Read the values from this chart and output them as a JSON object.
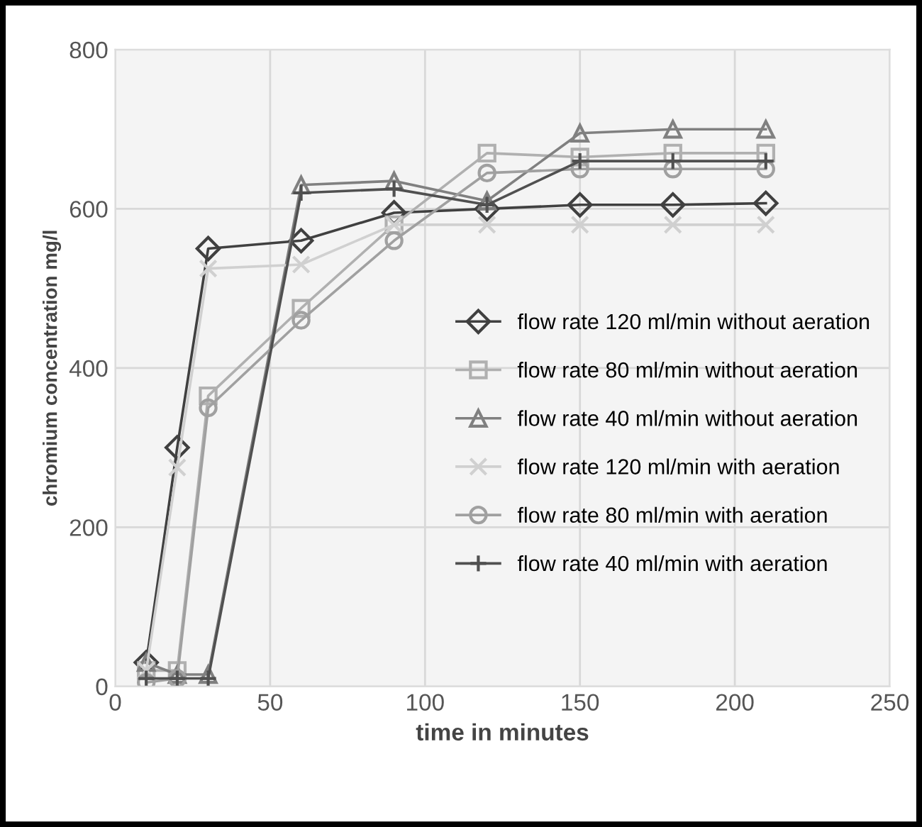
{
  "chart_data": {
    "type": "line",
    "xlabel": "time in minutes",
    "ylabel": "chromium concentration mg/l",
    "x": [
      10,
      20,
      30,
      60,
      90,
      120,
      150,
      180,
      210
    ],
    "xlim": [
      0,
      250
    ],
    "xticks": [
      0,
      50,
      100,
      150,
      200,
      250
    ],
    "ylim": [
      0,
      800
    ],
    "yticks": [
      0,
      200,
      400,
      600,
      800
    ],
    "grid": true,
    "legend": "right",
    "line_style": "solid",
    "series": [
      {
        "name": "flow rate 120 ml/min without aeration",
        "color": "#404040",
        "marker": "diamond",
        "values": [
          30,
          300,
          550,
          560,
          595,
          600,
          605,
          605,
          607
        ]
      },
      {
        "name": "flow rate 80 ml/min without aeration",
        "color": "#b0b0b0",
        "marker": "square",
        "values": [
          20,
          20,
          365,
          475,
          580,
          670,
          665,
          670,
          670
        ]
      },
      {
        "name": "flow rate 40 ml/min without aeration",
        "color": "#808080",
        "marker": "triangle",
        "values": [
          30,
          15,
          15,
          630,
          635,
          610,
          695,
          700,
          700
        ]
      },
      {
        "name": "flow rate 120 ml/min with aeration",
        "color": "#d0d0d0",
        "marker": "cross",
        "values": [
          20,
          275,
          525,
          530,
          580,
          580,
          580,
          580,
          580
        ]
      },
      {
        "name": "flow rate 80 ml/min with aeration",
        "color": "#a0a0a0",
        "marker": "circle",
        "values": [
          5,
          10,
          350,
          460,
          560,
          645,
          650,
          650,
          650
        ]
      },
      {
        "name": "flow rate 40 ml/min with aeration",
        "color": "#505050",
        "marker": "plus",
        "values": [
          10,
          10,
          10,
          620,
          625,
          605,
          660,
          660,
          660
        ]
      }
    ]
  }
}
